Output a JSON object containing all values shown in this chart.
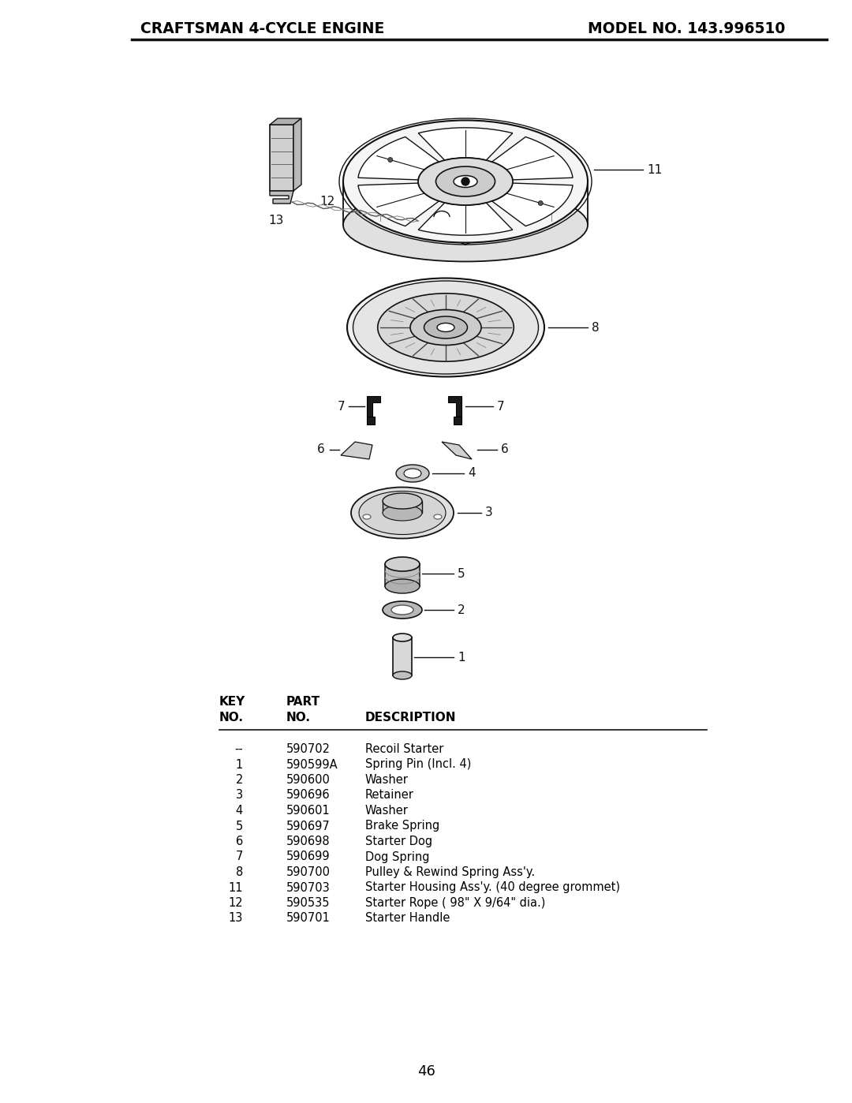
{
  "header_left": "CRAFTSMAN 4-CYCLE ENGINE",
  "header_right": "MODEL NO. 143.996510",
  "page_number": "46",
  "parts": [
    [
      "--",
      "590702",
      "Recoil Starter"
    ],
    [
      "1",
      "590599A",
      "Spring Pin (Incl. 4)"
    ],
    [
      "2",
      "590600",
      "Washer"
    ],
    [
      "3",
      "590696",
      "Retainer"
    ],
    [
      "4",
      "590601",
      "Washer"
    ],
    [
      "5",
      "590697",
      "Brake Spring"
    ],
    [
      "6",
      "590698",
      "Starter Dog"
    ],
    [
      "7",
      "590699",
      "Dog Spring"
    ],
    [
      "8",
      "590700",
      "Pulley & Rewind Spring Ass'y."
    ],
    [
      "11",
      "590703",
      "Starter Housing Ass'y. (40 degree grommet)"
    ],
    [
      "12",
      "590535",
      "Starter Rope ( 98\" X 9/64\" dia.)"
    ],
    [
      "13",
      "590701",
      "Starter Handle"
    ]
  ],
  "bg_color": "#ffffff",
  "text_color": "#000000"
}
